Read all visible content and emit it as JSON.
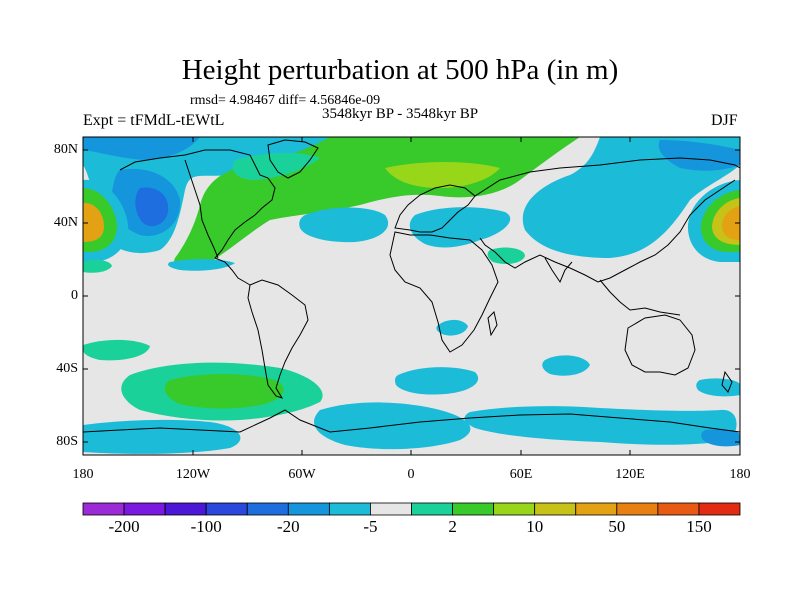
{
  "title": "Height perturbation at 500 hPa (in m)",
  "stats_line": "rmsd= 4.98467 diff= 4.56846e-09",
  "period_line": "3548kyr BP - 3548kyr BP",
  "experiment_label": "Expt = tFMdL-tEWtL",
  "season_label": "DJF",
  "lat_ticks": [
    "80N",
    "40N",
    "0",
    "40S",
    "80S"
  ],
  "lon_ticks": [
    "180",
    "120W",
    "60W",
    "0",
    "60E",
    "120E",
    "180"
  ],
  "colorbar": {
    "labels": [
      "-200",
      "-100",
      "-20",
      "-5",
      "2",
      "10",
      "50",
      "150"
    ],
    "colors": [
      "#9b2bd6",
      "#7b19e1",
      "#4c17d6",
      "#2b47dd",
      "#1f6ee0",
      "#1595dc",
      "#1cbcd9",
      "#e6e6e6",
      "#1bd19a",
      "#38c92b",
      "#98d61a",
      "#c7c217",
      "#e2a214",
      "#e87f12",
      "#e85a13",
      "#e22b12"
    ]
  },
  "map_colors": {
    "neutral": "#e6e6e6",
    "light_blue": "#1cbcd9",
    "blue": "#1595dc",
    "dark_blue": "#1f6ee0",
    "deep_blue": "#2b47dd",
    "teal_green": "#1bd19a",
    "green": "#38c92b",
    "yellow_green": "#98d61a",
    "olive": "#c7c217",
    "orange": "#e2a214"
  }
}
